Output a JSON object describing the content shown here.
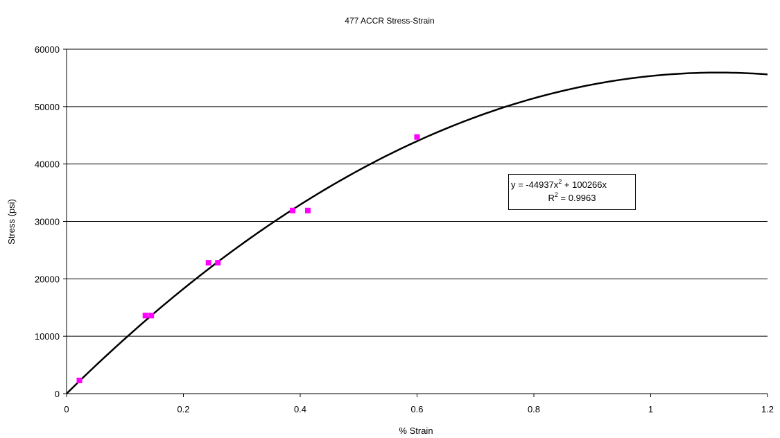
{
  "chart_data": {
    "type": "scatter",
    "title": "477 ACCR Stress-Strain",
    "xlabel": "% Strain",
    "ylabel": "Stress (psi)",
    "xlim": [
      0,
      1.2
    ],
    "ylim": [
      0,
      60000
    ],
    "xticks": [
      "0",
      "0.2",
      "0.4",
      "0.6",
      "0.8",
      "1",
      "1.2"
    ],
    "yticks": [
      "0",
      "10000",
      "20000",
      "30000",
      "40000",
      "50000",
      "60000"
    ],
    "grid": "horizontal",
    "series": [
      {
        "marker": "square",
        "color": "#ff00ff",
        "points": [
          {
            "x": 0.022,
            "y": 2300
          },
          {
            "x": 0.135,
            "y": 13600
          },
          {
            "x": 0.145,
            "y": 13600
          },
          {
            "x": 0.243,
            "y": 22800
          },
          {
            "x": 0.259,
            "y": 22800
          },
          {
            "x": 0.387,
            "y": 31900
          },
          {
            "x": 0.413,
            "y": 31900
          },
          {
            "x": 0.6,
            "y": 44700
          }
        ]
      }
    ],
    "trendline": {
      "type": "polynomial",
      "a": -44937,
      "b": 100266,
      "color": "#000000",
      "equation_prefix": "y = -44937x",
      "equation_exp": "2",
      "equation_suffix": " + 100266x",
      "r2_prefix": "R",
      "r2_exp": "2",
      "r2_suffix": " = 0.9963"
    }
  }
}
